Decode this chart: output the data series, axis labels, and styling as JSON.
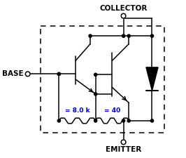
{
  "labels": {
    "base": "BASE",
    "collector": "COLLECTOR",
    "emitter": "EMITTER",
    "r1": "= 8.0 k",
    "r2": "= 40"
  },
  "colors": {
    "line": "#000000",
    "text": "#000000",
    "resistor_label": "#0000BB",
    "background": "#ffffff"
  },
  "fontsize": {
    "terminal": 7.5,
    "resistor_label": 6.5
  }
}
